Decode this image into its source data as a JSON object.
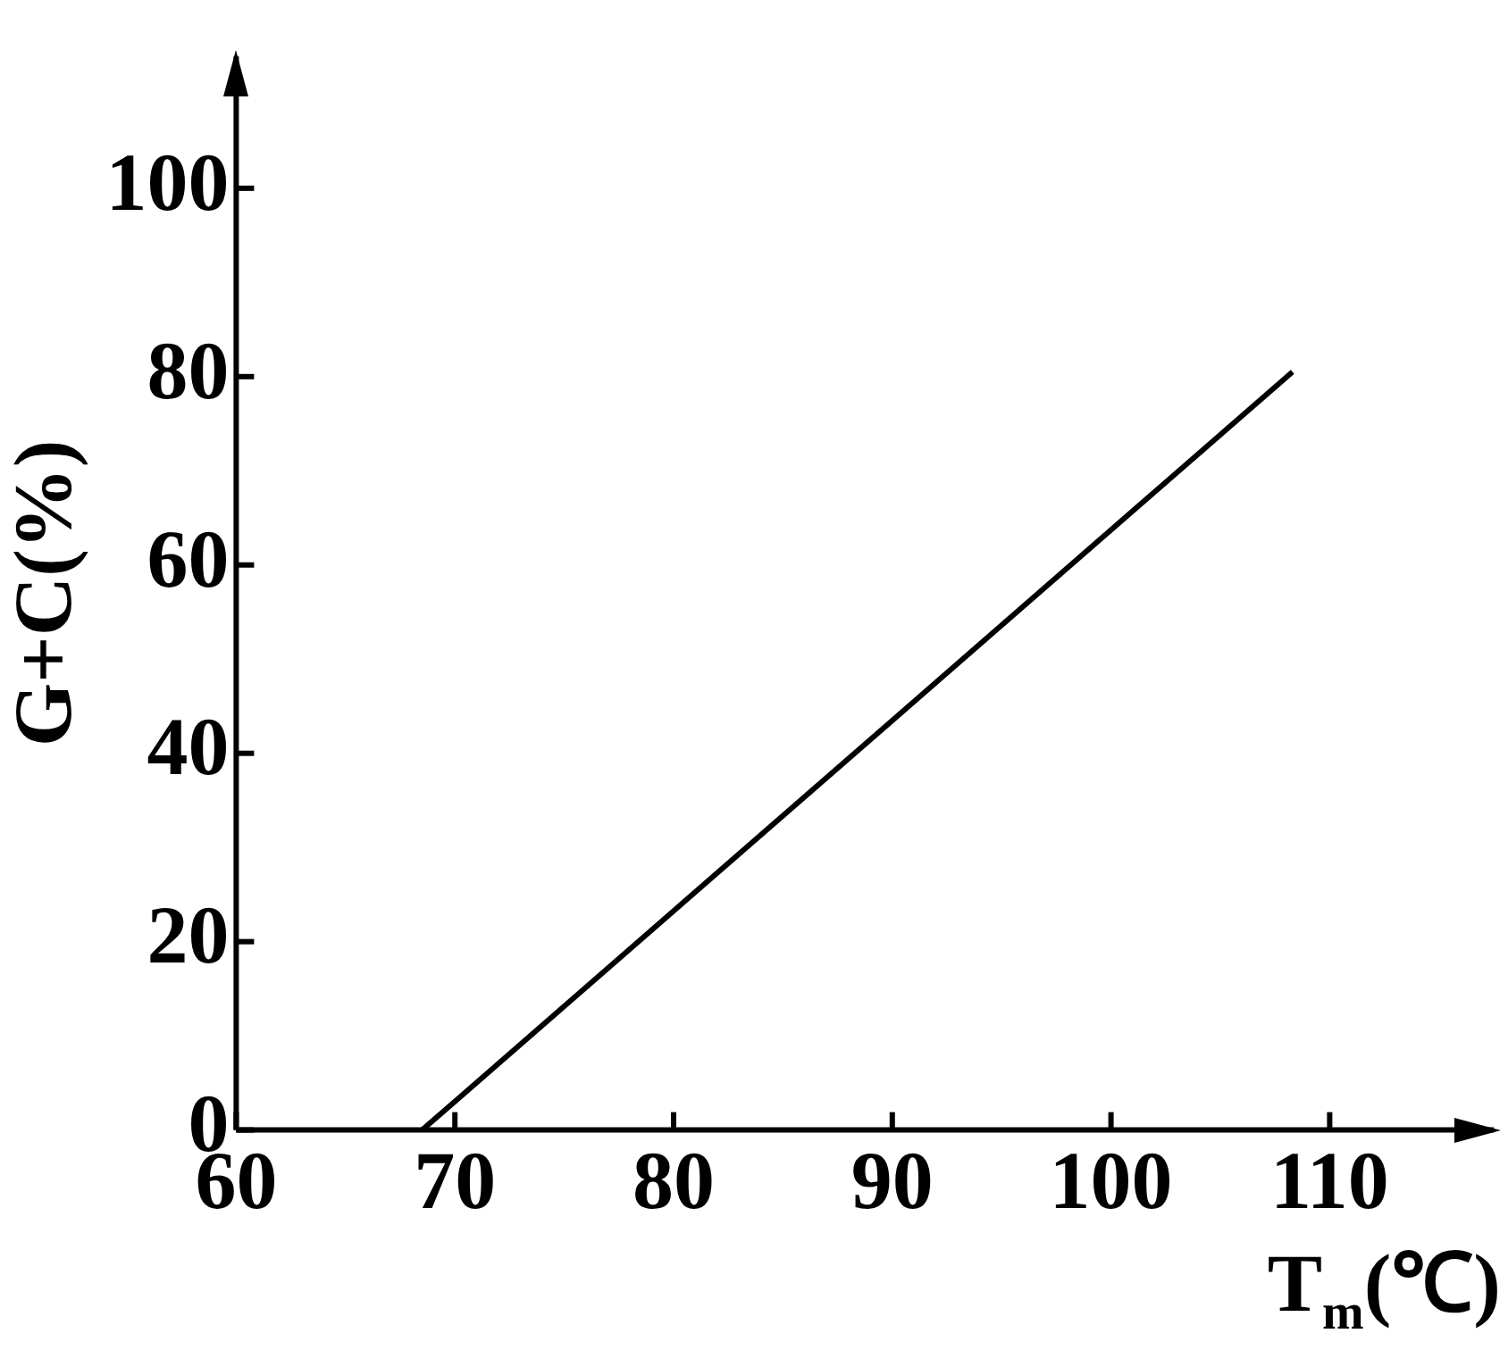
{
  "chart_data": {
    "type": "line",
    "xlabel": "T$_{m}$(℃)",
    "ylabel": "G+C(%)",
    "x": [
      68.5,
      108.3
    ],
    "values": [
      0,
      80.5
    ],
    "color": "#000000",
    "xlim": [
      60,
      117.5
    ],
    "ylim": [
      0,
      114
    ],
    "xticks": [
      60,
      70,
      80,
      90,
      100,
      110
    ],
    "yticks": [
      0,
      20,
      40,
      60,
      80,
      100
    ],
    "grid": false,
    "legend": false,
    "marker": "none",
    "line_style": "solid"
  }
}
